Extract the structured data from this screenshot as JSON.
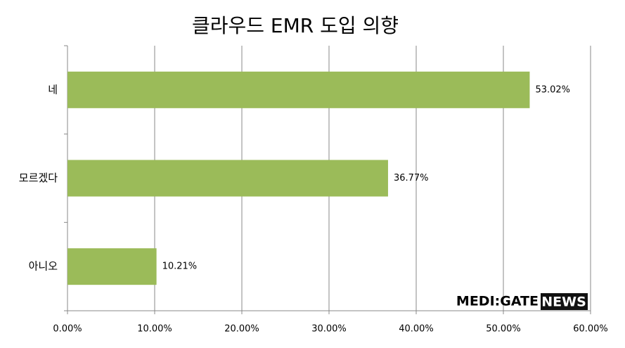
{
  "chart_data": {
    "type": "bar",
    "orientation": "horizontal",
    "title": "클라우드 EMR 도입 의향",
    "categories": [
      "네",
      "모르겠다",
      "아니오"
    ],
    "values": [
      53.02,
      36.77,
      10.21
    ],
    "value_labels": [
      "53.02%",
      "36.77%",
      "10.21%"
    ],
    "color": "#9bbb59",
    "xlim": [
      0,
      60
    ],
    "xticks": [
      {
        "value": 0,
        "label": "0.00%"
      },
      {
        "value": 10,
        "label": "10.00%"
      },
      {
        "value": 20,
        "label": "20.00%"
      },
      {
        "value": 30,
        "label": "30.00%"
      },
      {
        "value": 40,
        "label": "40.00%"
      },
      {
        "value": 50,
        "label": "50.00%"
      },
      {
        "value": 60,
        "label": "60.00%"
      }
    ],
    "grid": true,
    "annotations": [
      "MEDI:GATE",
      "NEWS"
    ]
  }
}
